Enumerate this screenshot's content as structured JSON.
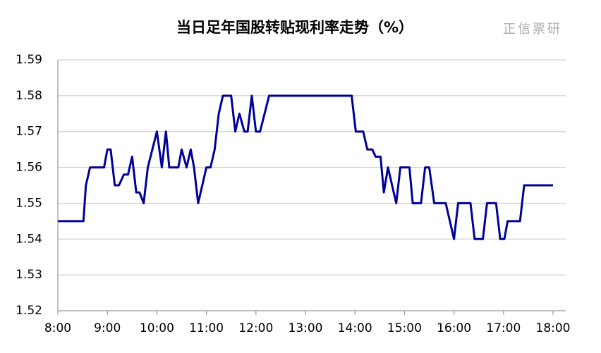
{
  "chart_data": {
    "type": "line",
    "title": "当日足年国股转贴现利率走势（%）",
    "watermark": "正信票研",
    "x": [
      "8:00",
      "8:31",
      "8:34",
      "8:39",
      "8:56",
      "9:00",
      "9:04",
      "9:09",
      "9:14",
      "9:20",
      "9:25",
      "9:30",
      "9:35",
      "9:39",
      "9:44",
      "9:49",
      "10:00",
      "10:06",
      "10:11",
      "10:15",
      "10:26",
      "10:30",
      "10:36",
      "10:41",
      "10:45",
      "10:50",
      "11:00",
      "11:05",
      "11:10",
      "11:15",
      "11:20",
      "11:30",
      "11:35",
      "11:40",
      "11:46",
      "11:50",
      "11:55",
      "12:00",
      "12:05",
      "12:16",
      "13:56",
      "14:01",
      "14:10",
      "14:15",
      "14:21",
      "14:25",
      "14:31",
      "14:35",
      "14:40",
      "14:50",
      "14:55",
      "15:06",
      "15:10",
      "15:20",
      "15:25",
      "15:30",
      "15:36",
      "15:50",
      "16:00",
      "16:05",
      "16:20",
      "16:25",
      "16:35",
      "16:40",
      "16:51",
      "16:56",
      "17:01",
      "17:05",
      "17:20",
      "17:25",
      "18:00"
    ],
    "series": [
      {
        "color": "#000099",
        "values": [
          1.545,
          1.545,
          1.555,
          1.56,
          1.56,
          1.565,
          1.565,
          1.555,
          1.555,
          1.558,
          1.558,
          1.563,
          1.553,
          1.553,
          1.55,
          1.56,
          1.57,
          1.56,
          1.57,
          1.56,
          1.56,
          1.565,
          1.56,
          1.565,
          1.56,
          1.55,
          1.56,
          1.56,
          1.565,
          1.575,
          1.58,
          1.58,
          1.57,
          1.575,
          1.57,
          1.57,
          1.58,
          1.57,
          1.57,
          1.58,
          1.58,
          1.57,
          1.57,
          1.565,
          1.565,
          1.563,
          1.563,
          1.553,
          1.56,
          1.55,
          1.56,
          1.56,
          1.55,
          1.55,
          1.56,
          1.56,
          1.55,
          1.55,
          1.54,
          1.55,
          1.55,
          1.54,
          1.54,
          1.55,
          1.55,
          1.54,
          1.54,
          1.545,
          1.545,
          1.555,
          1.555
        ]
      }
    ],
    "xlim": [
      "8:00",
      "18:00"
    ],
    "xticks": [
      "8:00",
      "9:00",
      "10:00",
      "11:00",
      "12:00",
      "13:00",
      "14:00",
      "15:00",
      "16:00",
      "17:00",
      "18:00"
    ],
    "ylim": [
      1.52,
      1.59
    ],
    "yticks": [
      1.52,
      1.53,
      1.54,
      1.55,
      1.56,
      1.57,
      1.58,
      1.59
    ],
    "grid": true
  }
}
